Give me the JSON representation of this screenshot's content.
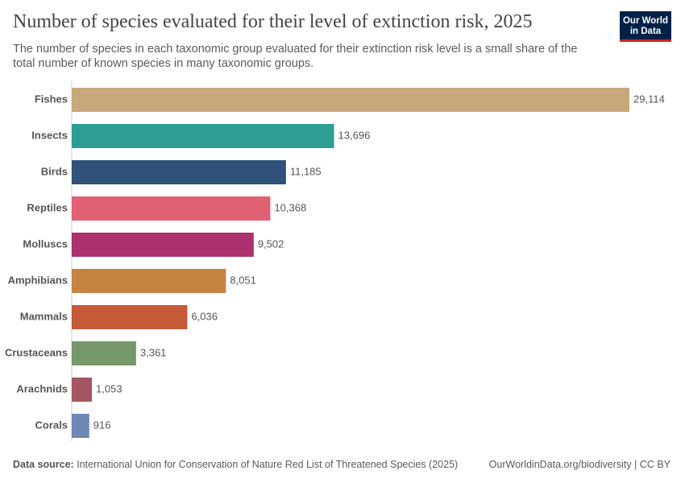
{
  "chart_data": {
    "type": "bar",
    "orientation": "horizontal",
    "title": "Number of species evaluated for their level of extinction risk, 2025",
    "subtitle": "The number of species in each taxonomic group evaluated for their extinction risk level is a small share of the total number of known species in many taxonomic groups.",
    "logo": [
      "Our World",
      "in Data"
    ],
    "categories": [
      "Fishes",
      "Insects",
      "Birds",
      "Reptiles",
      "Molluscs",
      "Amphibians",
      "Mammals",
      "Crustaceans",
      "Arachnids",
      "Corals"
    ],
    "values": [
      29114,
      13696,
      11185,
      10368,
      9502,
      8051,
      6036,
      3361,
      1053,
      916
    ],
    "value_labels": [
      "29,114",
      "13,696",
      "11,185",
      "10,368",
      "9,502",
      "8,051",
      "6,036",
      "3,361",
      "1,053",
      "916"
    ],
    "colors": [
      "#c8a77a",
      "#2e9e94",
      "#2f517a",
      "#e06173",
      "#ae316d",
      "#c58442",
      "#c45a38",
      "#76986a",
      "#a65662",
      "#6f87b4"
    ],
    "source_label": "Data source:",
    "source": "International Union for Conservation of Nature Red List of Threatened Species (2025)",
    "url": "OurWorldinData.org/biodiversity | CC BY"
  }
}
